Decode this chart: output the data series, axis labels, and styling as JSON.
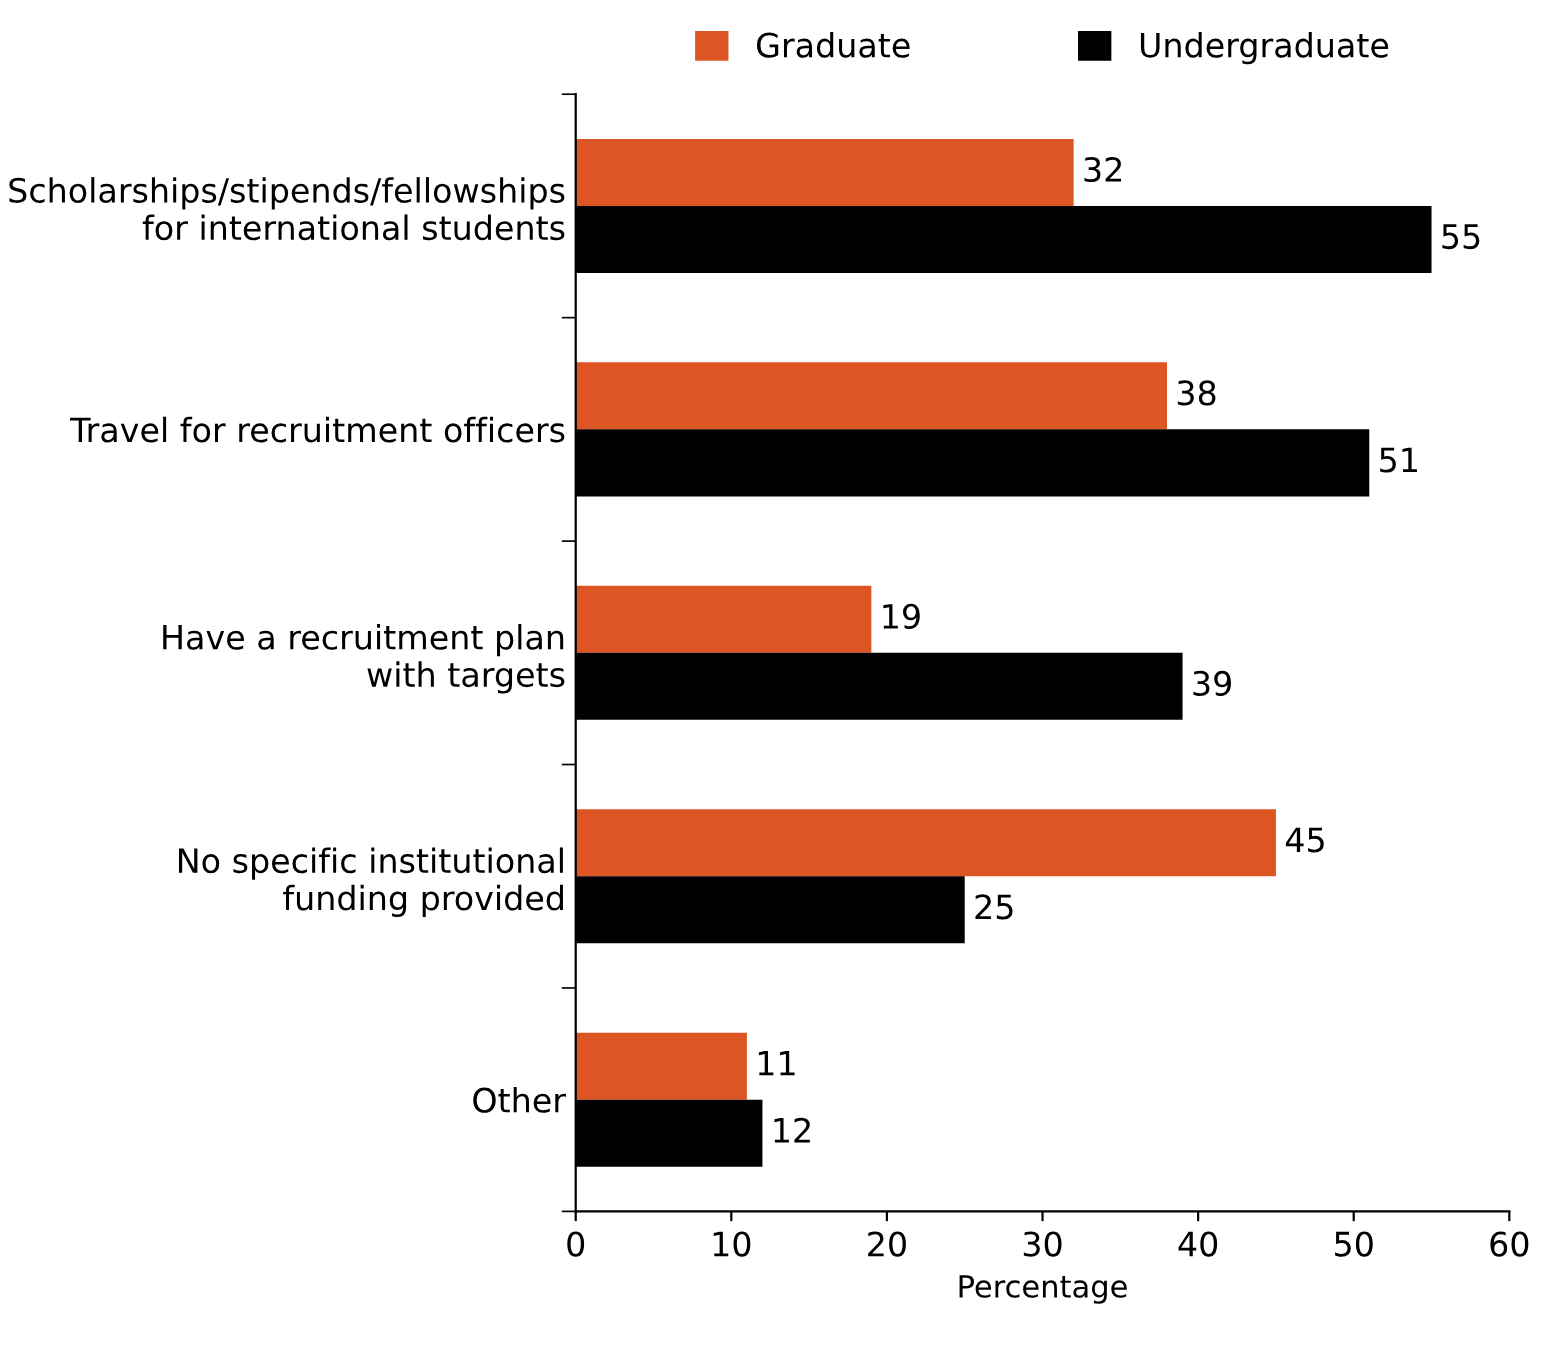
{
  "chart_data": {
    "type": "bar",
    "orientation": "horizontal",
    "xlabel": "Percentage",
    "categories": [
      "Scholarships/stipends/fellowships\nfor international students",
      "Travel for recruitment officers",
      "Have a recruitment plan\nwith targets",
      "No specific institutional\nfunding provided",
      "Other"
    ],
    "series": [
      {
        "name": "Graduate",
        "color": "#dc5522",
        "values": [
          32,
          38,
          19,
          45,
          11
        ]
      },
      {
        "name": "Undergraduate",
        "color": "#000000",
        "values": [
          55,
          51,
          39,
          25,
          12
        ]
      }
    ],
    "xlim": [
      0,
      60
    ],
    "xticks": [
      0,
      10,
      20,
      30,
      40,
      50,
      60
    ],
    "data_labels": true,
    "legend": "top",
    "grid": false
  }
}
